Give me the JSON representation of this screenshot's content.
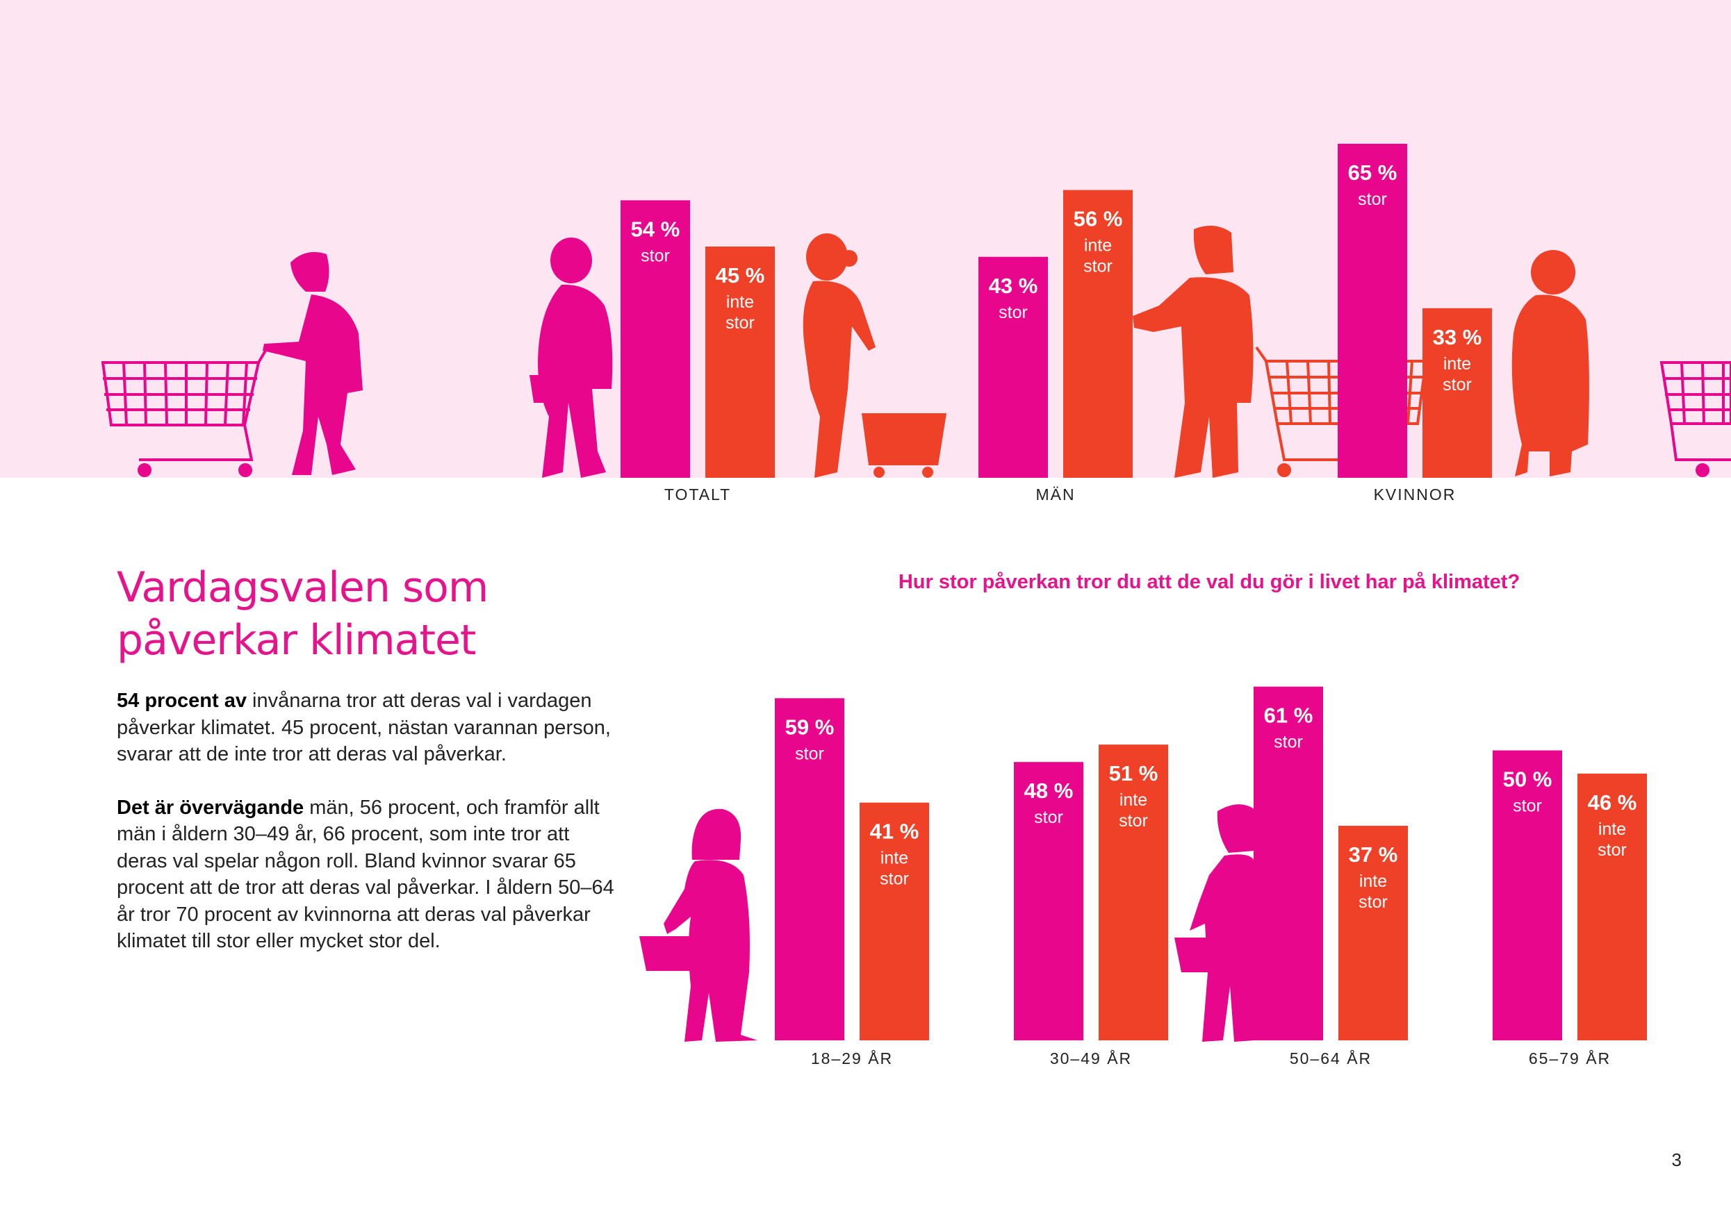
{
  "colors": {
    "stor": "#e8078c",
    "inte_stor": "#ee4127",
    "band": "#fde6f1",
    "accent": "#e5148c",
    "figure_pink": "#e8078c",
    "figure_orange": "#ee4127"
  },
  "heading": {
    "line1": "Vardagsvalen som",
    "line2": "påverkar klimatet"
  },
  "question": "Hur stor påverkan tror du att de val du gör i livet har på klimatet?",
  "body": {
    "p1_lead": "54 procent av",
    "p1_rest": " invånarna tror att deras val i vardagen påverkar klimatet. 45 procent, nästan varannan person, svarar att de inte tror att deras val påverkar.",
    "p2_lead": "Det är övervägande",
    "p2_rest": " män, 56 procent, och framför allt män i åldern 30–49 år, 66 procent, som inte tror att deras val spelar någon roll. Bland kvinnor svarar 65 procent att de tror att deras val påverkar. I åldern 50–64 år tror 70 procent av kvinnorna att deras val påverkar klimatet till stor eller mycket stor del."
  },
  "page_number": "3",
  "chart_data": [
    {
      "type": "bar",
      "categories": [
        "TOTALT",
        "MÄN",
        "KVINNOR"
      ],
      "series": [
        {
          "name": "stor",
          "values": [
            54,
            43,
            65
          ],
          "labels": [
            "54 %",
            "43 %",
            "65 %"
          ],
          "sublabel": [
            "stor"
          ]
        },
        {
          "name": "inte stor",
          "values": [
            45,
            56,
            33
          ],
          "labels": [
            "45 %",
            "56 %",
            "33 %"
          ],
          "sublabel": [
            "inte",
            "stor"
          ]
        }
      ],
      "unit": "%"
    },
    {
      "type": "bar",
      "categories": [
        "18–29 ÅR",
        "30–49 ÅR",
        "50–64 ÅR",
        "65–79 ÅR"
      ],
      "series": [
        {
          "name": "stor",
          "values": [
            59,
            48,
            61,
            50
          ],
          "labels": [
            "59 %",
            "48 %",
            "61 %",
            "50 %"
          ],
          "sublabel": [
            "stor"
          ]
        },
        {
          "name": "inte stor",
          "values": [
            41,
            51,
            37,
            46
          ],
          "labels": [
            "41 %",
            "51 %",
            "37 %",
            "46 %"
          ],
          "sublabel": [
            "inte",
            "stor"
          ]
        }
      ],
      "unit": "%"
    }
  ]
}
